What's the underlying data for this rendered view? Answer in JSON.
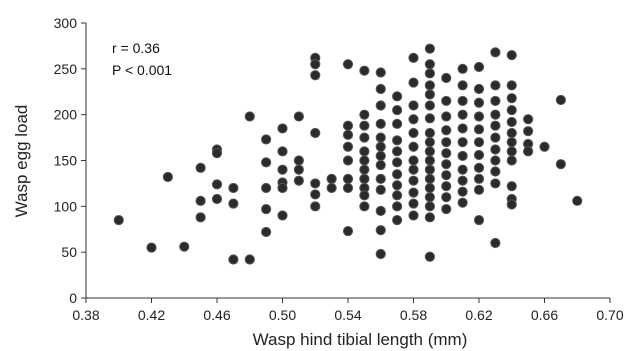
{
  "chart_data": {
    "type": "scatter",
    "title": "",
    "xlabel": "Wasp hind tibial length (mm)",
    "ylabel": "Wasp egg load",
    "xlim": [
      0.38,
      0.7
    ],
    "ylim": [
      0,
      300
    ],
    "xticks": [
      0.38,
      0.42,
      0.46,
      0.5,
      0.54,
      0.58,
      0.62,
      0.66,
      0.7
    ],
    "xtick_labels": [
      "0.38",
      "0.42",
      "0.46",
      "0.50",
      "0.54",
      "0.58",
      "0.62",
      "0.66",
      "0.70"
    ],
    "yticks": [
      0,
      50,
      100,
      150,
      200,
      250,
      300
    ],
    "ytick_labels": [
      "0",
      "50",
      "100",
      "150",
      "200",
      "250",
      "300"
    ],
    "grid": false,
    "annotations": [
      "r = 0.36",
      "P < 0.001"
    ],
    "marker_color": "#2b2b2b",
    "series": [
      {
        "points": [
          [
            0.4,
            85
          ],
          [
            0.42,
            55
          ],
          [
            0.43,
            132
          ],
          [
            0.44,
            56
          ],
          [
            0.45,
            142
          ],
          [
            0.45,
            106
          ],
          [
            0.45,
            88
          ],
          [
            0.46,
            162
          ],
          [
            0.46,
            158
          ],
          [
            0.46,
            124
          ],
          [
            0.46,
            108
          ],
          [
            0.47,
            120
          ],
          [
            0.47,
            103
          ],
          [
            0.47,
            42
          ],
          [
            0.48,
            198
          ],
          [
            0.48,
            42
          ],
          [
            0.49,
            173
          ],
          [
            0.49,
            148
          ],
          [
            0.49,
            120
          ],
          [
            0.49,
            97
          ],
          [
            0.49,
            72
          ],
          [
            0.5,
            185
          ],
          [
            0.5,
            160
          ],
          [
            0.5,
            140
          ],
          [
            0.5,
            126
          ],
          [
            0.5,
            120
          ],
          [
            0.5,
            90
          ],
          [
            0.51,
            198
          ],
          [
            0.51,
            150
          ],
          [
            0.51,
            140
          ],
          [
            0.51,
            128
          ],
          [
            0.52,
            262
          ],
          [
            0.52,
            255
          ],
          [
            0.52,
            243
          ],
          [
            0.52,
            180
          ],
          [
            0.52,
            125
          ],
          [
            0.52,
            113
          ],
          [
            0.52,
            100
          ],
          [
            0.53,
            130
          ],
          [
            0.53,
            120
          ],
          [
            0.54,
            255
          ],
          [
            0.54,
            188
          ],
          [
            0.54,
            178
          ],
          [
            0.54,
            165
          ],
          [
            0.54,
            150
          ],
          [
            0.54,
            130
          ],
          [
            0.54,
            120
          ],
          [
            0.54,
            73
          ],
          [
            0.55,
            248
          ],
          [
            0.55,
            200
          ],
          [
            0.55,
            188
          ],
          [
            0.55,
            175
          ],
          [
            0.55,
            160
          ],
          [
            0.55,
            150
          ],
          [
            0.55,
            140
          ],
          [
            0.55,
            130
          ],
          [
            0.55,
            120
          ],
          [
            0.55,
            112
          ],
          [
            0.55,
            100
          ],
          [
            0.56,
            246
          ],
          [
            0.56,
            228
          ],
          [
            0.56,
            210
          ],
          [
            0.56,
            190
          ],
          [
            0.56,
            175
          ],
          [
            0.56,
            165
          ],
          [
            0.56,
            155
          ],
          [
            0.56,
            145
          ],
          [
            0.56,
            130
          ],
          [
            0.56,
            118
          ],
          [
            0.56,
            95
          ],
          [
            0.56,
            74
          ],
          [
            0.56,
            48
          ],
          [
            0.57,
            220
          ],
          [
            0.57,
            205
          ],
          [
            0.57,
            190
          ],
          [
            0.57,
            172
          ],
          [
            0.57,
            160
          ],
          [
            0.57,
            148
          ],
          [
            0.57,
            135
          ],
          [
            0.57,
            123
          ],
          [
            0.57,
            112
          ],
          [
            0.57,
            100
          ],
          [
            0.57,
            85
          ],
          [
            0.58,
            262
          ],
          [
            0.58,
            235
          ],
          [
            0.58,
            210
          ],
          [
            0.58,
            195
          ],
          [
            0.58,
            180
          ],
          [
            0.58,
            165
          ],
          [
            0.58,
            150
          ],
          [
            0.58,
            140
          ],
          [
            0.58,
            128
          ],
          [
            0.58,
            115
          ],
          [
            0.58,
            103
          ],
          [
            0.58,
            90
          ],
          [
            0.59,
            272
          ],
          [
            0.59,
            255
          ],
          [
            0.59,
            245
          ],
          [
            0.59,
            232
          ],
          [
            0.59,
            222
          ],
          [
            0.59,
            210
          ],
          [
            0.59,
            196
          ],
          [
            0.59,
            180
          ],
          [
            0.59,
            170
          ],
          [
            0.59,
            160
          ],
          [
            0.59,
            150
          ],
          [
            0.59,
            140
          ],
          [
            0.59,
            130
          ],
          [
            0.59,
            120
          ],
          [
            0.59,
            110
          ],
          [
            0.59,
            100
          ],
          [
            0.59,
            88
          ],
          [
            0.59,
            45
          ],
          [
            0.6,
            240
          ],
          [
            0.6,
            215
          ],
          [
            0.6,
            198
          ],
          [
            0.6,
            183
          ],
          [
            0.6,
            170
          ],
          [
            0.6,
            158
          ],
          [
            0.6,
            146
          ],
          [
            0.6,
            134
          ],
          [
            0.6,
            122
          ],
          [
            0.6,
            110
          ],
          [
            0.6,
            97
          ],
          [
            0.61,
            250
          ],
          [
            0.61,
            232
          ],
          [
            0.61,
            215
          ],
          [
            0.61,
            200
          ],
          [
            0.61,
            185
          ],
          [
            0.61,
            170
          ],
          [
            0.61,
            155
          ],
          [
            0.61,
            140
          ],
          [
            0.61,
            128
          ],
          [
            0.61,
            116
          ],
          [
            0.61,
            104
          ],
          [
            0.62,
            252
          ],
          [
            0.62,
            228
          ],
          [
            0.62,
            213
          ],
          [
            0.62,
            198
          ],
          [
            0.62,
            184
          ],
          [
            0.62,
            170
          ],
          [
            0.62,
            156
          ],
          [
            0.62,
            142
          ],
          [
            0.62,
            130
          ],
          [
            0.62,
            118
          ],
          [
            0.62,
            85
          ],
          [
            0.63,
            268
          ],
          [
            0.63,
            232
          ],
          [
            0.63,
            215
          ],
          [
            0.63,
            200
          ],
          [
            0.63,
            188
          ],
          [
            0.63,
            175
          ],
          [
            0.63,
            162
          ],
          [
            0.63,
            150
          ],
          [
            0.63,
            138
          ],
          [
            0.63,
            125
          ],
          [
            0.63,
            60
          ],
          [
            0.64,
            265
          ],
          [
            0.64,
            232
          ],
          [
            0.64,
            218
          ],
          [
            0.64,
            205
          ],
          [
            0.64,
            192
          ],
          [
            0.64,
            180
          ],
          [
            0.64,
            170
          ],
          [
            0.64,
            160
          ],
          [
            0.64,
            150
          ],
          [
            0.64,
            122
          ],
          [
            0.64,
            108
          ],
          [
            0.64,
            102
          ],
          [
            0.65,
            195
          ],
          [
            0.65,
            182
          ],
          [
            0.65,
            168
          ],
          [
            0.65,
            160
          ],
          [
            0.66,
            165
          ],
          [
            0.67,
            216
          ],
          [
            0.67,
            146
          ],
          [
            0.68,
            106
          ]
        ]
      }
    ]
  }
}
